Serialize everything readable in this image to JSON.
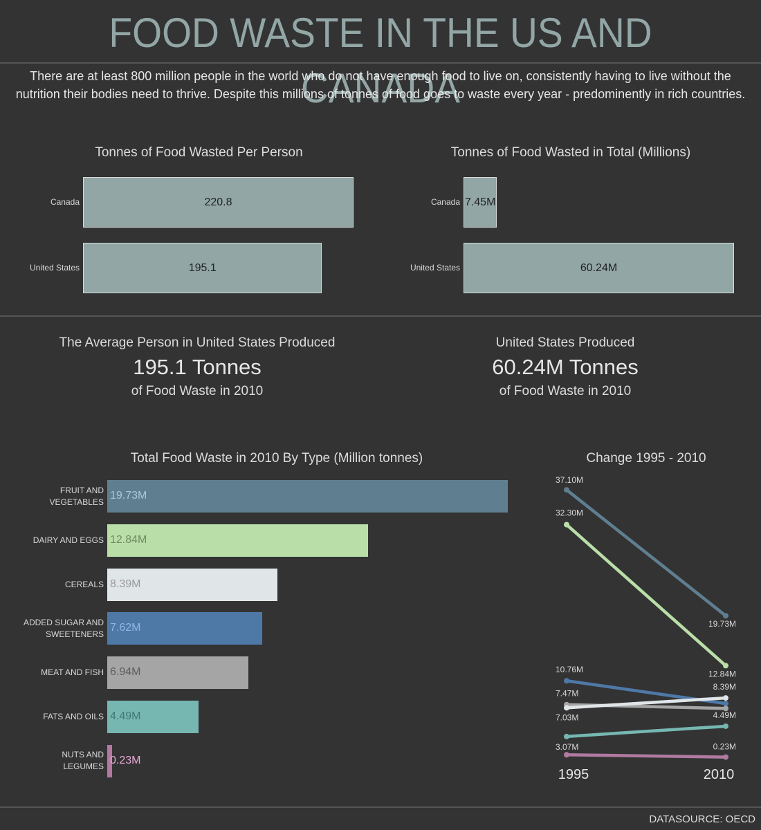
{
  "header": {
    "title": "FOOD WASTE IN THE US AND CANADA",
    "intro": "There are at least 800 million people in the world who do not have enough food to live on, consistently having to live without the nutrition their bodies need to thrive. Despite this millions of tonnes of food goes to waste every year - predominently in rich countries."
  },
  "colors": {
    "background": "#333333",
    "title": "#93a6a6",
    "country_bar": "#93a6a6",
    "divider": "#555555"
  },
  "kpis": {
    "per_person": {
      "line1": "The Average Person in United States Produced",
      "line2": "195.1 Tonnes",
      "line3": "of Food Waste in 2010"
    },
    "total": {
      "line1": "United States Produced",
      "line2": "60.24M Tonnes",
      "line3": "of Food Waste in  2010"
    }
  },
  "footer": {
    "datasource": "DATASOURCE: OECD"
  },
  "chart_data": [
    {
      "type": "bar",
      "orientation": "horizontal",
      "title": "Tonnes of Food Wasted Per Person",
      "categories": [
        "Canada",
        "United States"
      ],
      "values": [
        220.8,
        195.1
      ],
      "labels": [
        "220.8",
        "195.1"
      ],
      "xlim": [
        0,
        220.8
      ]
    },
    {
      "type": "bar",
      "orientation": "horizontal",
      "title": "Tonnes of Food Wasted in Total (Millions)",
      "categories": [
        "Canada",
        "United States"
      ],
      "values": [
        7.45,
        60.24
      ],
      "labels": [
        "7.45M",
        "60.24M"
      ],
      "xlim": [
        0,
        60.24
      ]
    },
    {
      "type": "bar",
      "orientation": "horizontal",
      "title": "Total Food Waste in 2010 By Type (Million tonnes)",
      "categories": [
        "FRUIT AND VEGETABLES",
        "DAIRY AND EGGS",
        "CEREALS",
        "ADDED SUGAR AND SWEETENERS",
        "MEAT AND FISH",
        "FATS AND OILS",
        "NUTS AND LEGUMES"
      ],
      "category_lines": [
        [
          "FRUIT AND",
          "VEGETABLES"
        ],
        [
          "DAIRY AND EGGS"
        ],
        [
          "CEREALS"
        ],
        [
          "ADDED SUGAR AND",
          "SWEETENERS"
        ],
        [
          "MEAT AND FISH"
        ],
        [
          "FATS AND OILS"
        ],
        [
          "NUTS AND",
          "LEGUMES"
        ]
      ],
      "values": [
        19.73,
        12.84,
        8.39,
        7.62,
        6.94,
        4.49,
        0.23
      ],
      "labels": [
        "19.73M",
        "12.84M",
        "8.39M",
        "7.62M",
        "6.94M",
        "4.49M",
        "0.23M"
      ],
      "colors": [
        "#5f7f91",
        "#badea8",
        "#e0e5e8",
        "#4e79a7",
        "#a5a5a5",
        "#76b7b2",
        "#b07aa1"
      ],
      "label_colors": [
        "#a9c8dc",
        "#6f8c62",
        "#9a9a9a",
        "#8fb5e3",
        "#5e5e5e",
        "#3f7a75",
        "#e9a7d6"
      ],
      "xlim": [
        0,
        19.73
      ]
    },
    {
      "type": "line",
      "title": "Change 1995 - 2010",
      "x": [
        "1995",
        "2010"
      ],
      "series": [
        {
          "name": "FRUIT AND VEGETABLES",
          "values": [
            37.1,
            19.73
          ],
          "labels": [
            "37.10M",
            "19.73M"
          ],
          "color": "#5f7f91"
        },
        {
          "name": "DAIRY AND EGGS",
          "values": [
            32.3,
            12.84
          ],
          "labels": [
            "32.30M",
            "12.84M"
          ],
          "color": "#badea8"
        },
        {
          "name": "ADDED SUGAR AND SWEETENERS",
          "values": [
            10.76,
            7.62
          ],
          "labels": [
            "10.76M",
            ""
          ],
          "color": "#4e79a7"
        },
        {
          "name": "MEAT AND FISH",
          "values": [
            7.47,
            6.94
          ],
          "labels": [
            "7.47M",
            ""
          ],
          "color": "#a5a5a5"
        },
        {
          "name": "CEREALS",
          "values": [
            7.03,
            8.39
          ],
          "labels": [
            "7.03M",
            "8.39M"
          ],
          "color": "#e0e5e8"
        },
        {
          "name": "FATS AND OILS",
          "values": [
            3.07,
            4.49
          ],
          "labels": [
            "3.07M",
            "4.49M"
          ],
          "color": "#76b7b2"
        },
        {
          "name": "NUTS AND LEGUMES",
          "values": [
            0.55,
            0.23
          ],
          "labels": [
            "",
            "0.23M"
          ],
          "color": "#b07aa1"
        }
      ],
      "ylim": [
        0,
        37.1
      ]
    }
  ]
}
